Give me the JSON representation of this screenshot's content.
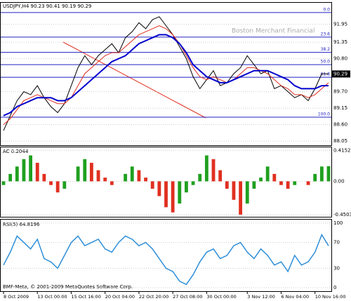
{
  "chart_data": [
    {
      "type": "line",
      "title": "USDJPY,H4  90.23 90.41 90.19 90.29",
      "watermark": "Boston Merchant Financial",
      "ylim": [
        87.96,
        92.57
      ],
      "yticks": [
        91.95,
        91.35,
        {
          "value": 90.8,
          "label": "90.80"
        },
        {
          "value": 89.7,
          "label": "89.70"
        },
        89.15,
        {
          "value": 88.6,
          "label": "88.60"
        },
        88.05
      ],
      "price_label": 90.29,
      "levels": [
        {
          "value": 92.34,
          "label": "0.0"
        },
        {
          "value": 91.52,
          "label": "23.6"
        },
        {
          "value": 91.01,
          "label": "38.2"
        },
        {
          "value": 90.6,
          "label": "50.0"
        },
        {
          "value": 90.18,
          "label": "61.8"
        },
        {
          "value": 88.85,
          "label": "100.0"
        }
      ],
      "level_color": "#2020c0",
      "series": [
        {
          "color": "#000000",
          "values": [
            88.4,
            88.9,
            89.4,
            89.7,
            89.6,
            89.9,
            89.5,
            89.2,
            89.0,
            89.3,
            89.9,
            90.5,
            90.9,
            90.6,
            90.9,
            91.1,
            91.3,
            91.0,
            91.5,
            91.7,
            92.0,
            91.8,
            92.1,
            92.2,
            91.9,
            91.6,
            91.2,
            90.8,
            90.2,
            89.8,
            90.1,
            90.4,
            89.9,
            90.0,
            90.3,
            90.5,
            90.9,
            90.6,
            90.3,
            90.4,
            89.8,
            89.9,
            89.7,
            89.5,
            89.6,
            89.4,
            89.8,
            90.3,
            90.29
          ]
        },
        {
          "color": "#e03020",
          "values": [
            88.6,
            88.8,
            89.1,
            89.4,
            89.5,
            89.6,
            89.5,
            89.4,
            89.3,
            89.3,
            89.5,
            89.9,
            90.3,
            90.5,
            90.7,
            90.9,
            91.0,
            91.0,
            91.2,
            91.4,
            91.6,
            91.7,
            91.8,
            91.9,
            91.8,
            91.6,
            91.3,
            90.9,
            90.5,
            90.2,
            90.1,
            90.2,
            90.1,
            90.0,
            90.1,
            90.3,
            90.5,
            90.5,
            90.4,
            90.3,
            90.1,
            89.9,
            89.8,
            89.6,
            89.6,
            89.5,
            89.6,
            89.8,
            90.0
          ]
        },
        {
          "color": "#0000cc",
          "values": [
            88.9,
            89.0,
            89.2,
            89.3,
            89.4,
            89.5,
            89.5,
            89.5,
            89.4,
            89.4,
            89.5,
            89.7,
            89.9,
            90.1,
            90.3,
            90.5,
            90.7,
            90.8,
            90.9,
            91.1,
            91.3,
            91.4,
            91.5,
            91.6,
            91.6,
            91.5,
            91.3,
            91.0,
            90.6,
            90.4,
            90.2,
            90.1,
            90.0,
            90.0,
            90.1,
            90.2,
            90.3,
            90.4,
            90.4,
            90.4,
            90.3,
            90.2,
            90.1,
            89.9,
            89.8,
            89.8,
            89.8,
            89.9,
            89.9
          ]
        }
      ]
    },
    {
      "type": "bar",
      "title": "AC 0.2044",
      "ylim": [
        -0.47,
        0.44
      ],
      "yticks": [
        0.4152,
        {
          "value": 0,
          "label": "0.00"
        },
        -0.4503
      ],
      "up_color": "#20a020",
      "down_color": "#e03020",
      "values": [
        -0.05,
        0.1,
        0.2,
        0.3,
        0.35,
        0.25,
        0.1,
        -0.05,
        -0.15,
        -0.1,
        0.0,
        0.2,
        0.3,
        0.25,
        0.15,
        0.05,
        -0.05,
        0.0,
        0.1,
        0.2,
        0.15,
        0.05,
        -0.1,
        -0.2,
        -0.35,
        -0.42,
        -0.3,
        -0.15,
        -0.05,
        0.1,
        0.35,
        0.3,
        0.15,
        -0.1,
        -0.25,
        -0.45,
        -0.3,
        -0.1,
        0.05,
        0.2,
        0.1,
        -0.05,
        -0.1,
        -0.05,
        0.0,
        -0.05,
        0.1,
        0.2,
        0.2044
      ]
    },
    {
      "type": "line",
      "title": "RSI(5) 64.8196",
      "ylim": [
        0,
        100
      ],
      "yticks": [
        100,
        70,
        30,
        0
      ],
      "color": "#2f8fd8",
      "values": [
        35,
        55,
        80,
        70,
        60,
        75,
        45,
        40,
        30,
        50,
        70,
        80,
        65,
        70,
        75,
        60,
        55,
        70,
        80,
        75,
        65,
        70,
        60,
        45,
        30,
        25,
        10,
        5,
        20,
        40,
        55,
        60,
        45,
        50,
        65,
        70,
        55,
        45,
        60,
        50,
        35,
        40,
        25,
        50,
        35,
        40,
        55,
        82,
        64.8196
      ],
      "xticks": [
        {
          "value": 0,
          "label": "8 Oct 2009"
        },
        {
          "value": 5,
          "label": "13 Oct 00:00"
        },
        {
          "value": 10,
          "label": "15 Oct 16:00"
        },
        {
          "value": 15,
          "label": "20 Oct 04:00"
        },
        {
          "value": 20,
          "label": "22 Oct 20:00"
        },
        {
          "value": 25,
          "label": "27 Oct 08:00"
        },
        {
          "value": 30,
          "label": "30 Oct 00:00"
        },
        {
          "value": 36,
          "label": "3 Nov 12:00"
        },
        {
          "value": 41,
          "label": "6 Nov 04:00"
        },
        {
          "value": 46,
          "label": "10 Nov 16:00"
        }
      ],
      "footer": "BMF-Meta, © 2001-2009 MetaQuotes Software Corp."
    }
  ]
}
